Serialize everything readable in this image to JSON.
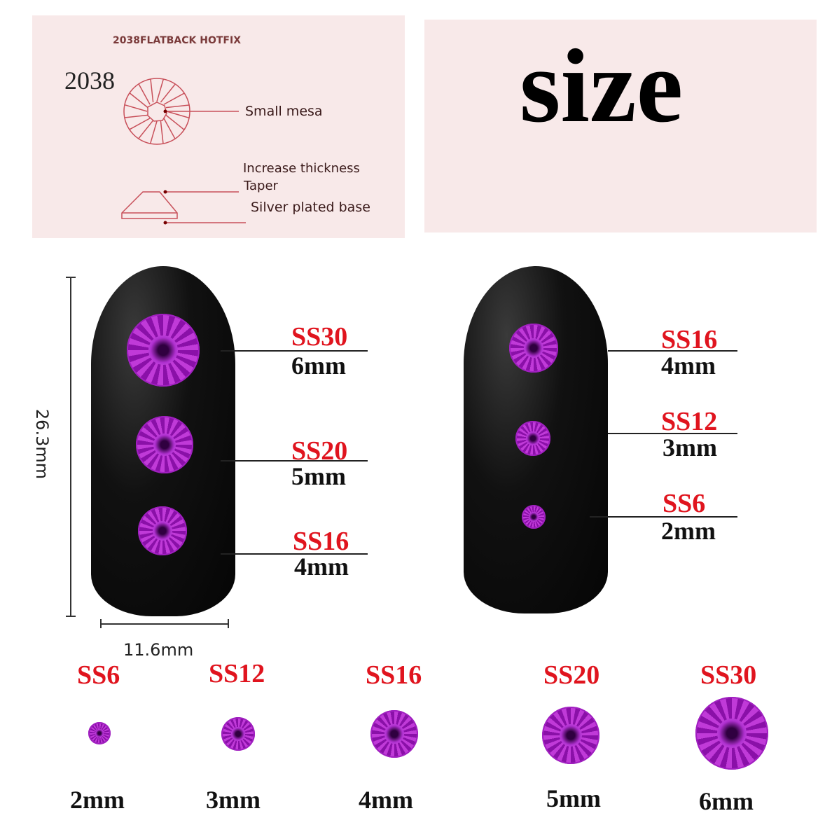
{
  "diagram_panel": {
    "header": "2038FLATBACK HOTFIX",
    "model": "2038",
    "labels": [
      "Small mesa",
      "Increase thickness",
      "Taper",
      "Silver plated base"
    ]
  },
  "size_panel": {
    "title": "size"
  },
  "dimensions": {
    "height": "26.3mm",
    "width": "11.6mm"
  },
  "nail_left": [
    {
      "code": "SS30",
      "mm": "6mm"
    },
    {
      "code": "SS20",
      "mm": "5mm"
    },
    {
      "code": "SS16",
      "mm": "4mm"
    }
  ],
  "nail_right": [
    {
      "code": "SS16",
      "mm": "4mm"
    },
    {
      "code": "SS12",
      "mm": "3mm"
    },
    {
      "code": "SS6",
      "mm": "2mm"
    }
  ],
  "size_row": [
    {
      "code": "SS6",
      "mm": "2mm"
    },
    {
      "code": "SS12",
      "mm": "3mm"
    },
    {
      "code": "SS16",
      "mm": "4mm"
    },
    {
      "code": "SS20",
      "mm": "5mm"
    },
    {
      "code": "SS30",
      "mm": "6mm"
    }
  ],
  "colors": {
    "panel": "#f8e9e9",
    "label_red": "#e0141e",
    "gem": "#b020c0",
    "diagram_line": "#c8505a"
  }
}
